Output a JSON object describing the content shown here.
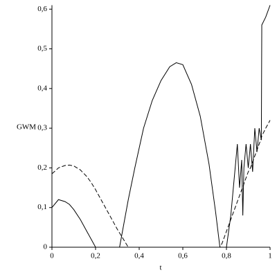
{
  "chart_data": {
    "type": "line",
    "xlabel": "t",
    "ylabel": "GWM",
    "x": [
      0,
      0.03,
      0.06,
      0.08,
      0.1,
      0.13,
      0.16,
      0.18,
      0.2,
      0.25,
      0.3,
      0.31,
      0.33,
      0.35,
      0.38,
      0.42,
      0.46,
      0.5,
      0.54,
      0.57,
      0.6,
      0.64,
      0.68,
      0.72,
      0.75,
      0.77,
      0.78,
      0.8,
      0.82,
      0.84,
      0.85,
      0.86,
      0.87,
      0.875,
      0.88,
      0.89,
      0.9,
      0.91,
      0.92,
      0.93,
      0.94,
      0.95,
      0.96,
      0.962,
      0.98,
      1
    ],
    "series": [
      {
        "color": "#000000",
        "style": "solid",
        "values": [
          0.1,
          0.12,
          0.115,
          0.108,
          0.095,
          0.07,
          0.04,
          0.02,
          0,
          0,
          0,
          0,
          0.06,
          0.12,
          0.2,
          0.3,
          0.37,
          0.42,
          0.455,
          0.465,
          0.46,
          0.41,
          0.33,
          0.21,
          0.09,
          0,
          0,
          0,
          0.08,
          0.2,
          0.26,
          0.15,
          0.22,
          0.08,
          0.2,
          0.26,
          0.2,
          0.26,
          0.19,
          0.3,
          0.24,
          0.3,
          0.27,
          0.56,
          0.58,
          0.61
        ]
      },
      {
        "color": "#000000",
        "style": "dashed",
        "values": [
          0.185,
          0.2,
          0.206,
          0.207,
          0.205,
          0.195,
          0.178,
          0.163,
          0.145,
          0.095,
          0.045,
          0.036,
          0.018,
          0,
          0,
          0,
          0,
          0,
          0,
          0,
          0,
          0,
          0,
          0,
          0,
          0,
          0.01,
          0.04,
          0.07,
          0.1,
          0.115,
          0.13,
          0.145,
          0.15,
          0.16,
          0.175,
          0.19,
          0.2,
          0.215,
          0.23,
          0.245,
          0.26,
          0.275,
          0.28,
          0.3,
          0.32
        ]
      }
    ],
    "xlim": [
      0,
      1
    ],
    "xticks": [
      0,
      {
        "value": 0.2,
        "label": "0,2"
      },
      {
        "value": 0.4,
        "label": "0,4"
      },
      {
        "value": 0.6,
        "label": "0,6"
      },
      {
        "value": 0.8,
        "label": "0,8"
      },
      1
    ],
    "ylim": [
      0,
      0.61
    ],
    "yticks": [
      0,
      {
        "value": 0.1,
        "label": "0,1"
      },
      {
        "value": 0.2,
        "label": "0,2"
      },
      {
        "value": 0.3,
        "label": "0,3"
      },
      {
        "value": 0.4,
        "label": "0,4"
      },
      {
        "value": 0.5,
        "label": "0,5"
      },
      {
        "value": 0.6,
        "label": "0,6"
      }
    ],
    "grid": false
  }
}
